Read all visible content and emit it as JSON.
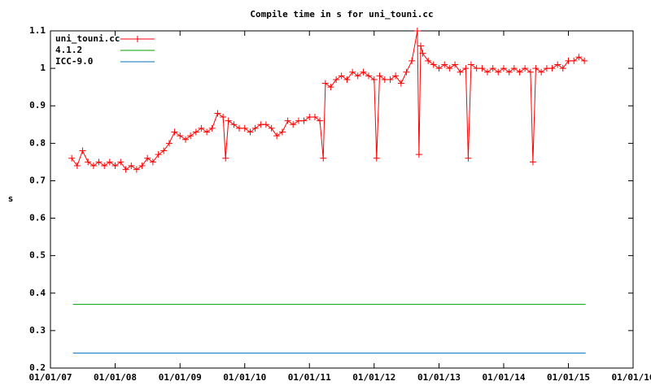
{
  "chart_data": {
    "type": "line",
    "title": "Compile time in s for uni_touni.cc",
    "y_label": "s",
    "xlim": [
      "01/01/07",
      "01/01/16"
    ],
    "xticks": [
      "01/01/07",
      "01/01/08",
      "01/01/09",
      "01/01/10",
      "01/01/11",
      "01/01/12",
      "01/01/13",
      "01/01/14",
      "01/01/15",
      "01/01/16"
    ],
    "ylim": [
      0.2,
      1.1
    ],
    "yticks": [
      0.2,
      0.3,
      0.4,
      0.5,
      0.6,
      0.7,
      0.8,
      0.9,
      1,
      1.1
    ],
    "legend": "top-left",
    "series": [
      {
        "name": "uni_touni.cc",
        "color": "#ff0000",
        "markers": true,
        "x": [
          "05/01/07",
          "06/01/07",
          "07/01/07",
          "08/01/07",
          "09/01/07",
          "10/01/07",
          "11/01/07",
          "12/01/07",
          "01/01/08",
          "02/01/08",
          "03/01/08",
          "04/01/08",
          "05/01/08",
          "06/01/08",
          "07/01/08",
          "08/01/08",
          "09/01/08",
          "10/01/08",
          "11/01/08",
          "12/01/08",
          "01/01/09",
          "02/01/09",
          "03/01/09",
          "04/01/09",
          "05/01/09",
          "06/01/09",
          "07/01/09",
          "08/01/09",
          "09/01/09",
          "09/15/09",
          "10/01/09",
          "11/01/09",
          "12/01/09",
          "01/01/10",
          "02/01/10",
          "03/01/10",
          "04/01/10",
          "05/01/10",
          "06/01/10",
          "07/01/10",
          "08/01/10",
          "09/01/10",
          "10/01/10",
          "11/01/10",
          "12/01/10",
          "01/01/11",
          "02/01/11",
          "03/01/11",
          "03/20/11",
          "04/01/11",
          "05/01/11",
          "06/01/11",
          "07/01/11",
          "08/01/11",
          "09/01/11",
          "10/01/11",
          "11/01/11",
          "12/01/11",
          "01/01/12",
          "01/15/12",
          "02/01/12",
          "03/01/12",
          "04/01/12",
          "05/01/12",
          "06/01/12",
          "07/01/12",
          "08/01/12",
          "09/01/12",
          "09/10/12",
          "09/20/12",
          "10/01/12",
          "11/01/12",
          "12/01/12",
          "01/01/13",
          "02/01/13",
          "03/01/13",
          "04/01/13",
          "05/01/13",
          "06/01/13",
          "06/15/13",
          "07/01/13",
          "08/01/13",
          "09/01/13",
          "10/01/13",
          "11/01/13",
          "12/01/13",
          "01/01/14",
          "02/01/14",
          "03/01/14",
          "04/01/14",
          "05/01/14",
          "06/01/14",
          "06/15/14",
          "07/01/14",
          "08/01/14",
          "09/01/14",
          "10/01/14",
          "11/01/14",
          "12/01/14",
          "01/01/15",
          "02/01/15",
          "03/01/15",
          "04/01/15"
        ],
        "values": [
          0.76,
          0.74,
          0.78,
          0.75,
          0.74,
          0.75,
          0.74,
          0.75,
          0.74,
          0.75,
          0.73,
          0.74,
          0.73,
          0.74,
          0.76,
          0.75,
          0.77,
          0.78,
          0.8,
          0.83,
          0.82,
          0.81,
          0.82,
          0.83,
          0.84,
          0.83,
          0.84,
          0.88,
          0.87,
          0.76,
          0.86,
          0.85,
          0.84,
          0.84,
          0.83,
          0.84,
          0.85,
          0.85,
          0.84,
          0.82,
          0.83,
          0.86,
          0.85,
          0.86,
          0.86,
          0.87,
          0.87,
          0.86,
          0.76,
          0.96,
          0.95,
          0.97,
          0.98,
          0.97,
          0.99,
          0.98,
          0.99,
          0.98,
          0.97,
          0.76,
          0.98,
          0.97,
          0.97,
          0.98,
          0.96,
          0.99,
          1.02,
          1.1,
          0.77,
          1.06,
          1.04,
          1.02,
          1.01,
          1,
          1.01,
          1,
          1.01,
          0.99,
          1,
          0.76,
          1.01,
          1,
          1,
          0.99,
          1,
          0.99,
          1,
          0.99,
          1,
          0.99,
          1,
          0.99,
          0.75,
          1,
          0.99,
          1,
          1,
          1.01,
          1,
          1.02,
          1.02,
          1.03,
          1.02
        ]
      },
      {
        "name": "4.1.2",
        "color": "#00a000",
        "markers": false,
        "x": [
          "05/08/07",
          "04/08/15"
        ],
        "values": [
          0.37,
          0.37
        ]
      },
      {
        "name": "ICC-9.0",
        "color": "#0070c0",
        "markers": false,
        "x": [
          "05/08/07",
          "04/08/15"
        ],
        "values": [
          0.24,
          0.24
        ]
      }
    ]
  }
}
